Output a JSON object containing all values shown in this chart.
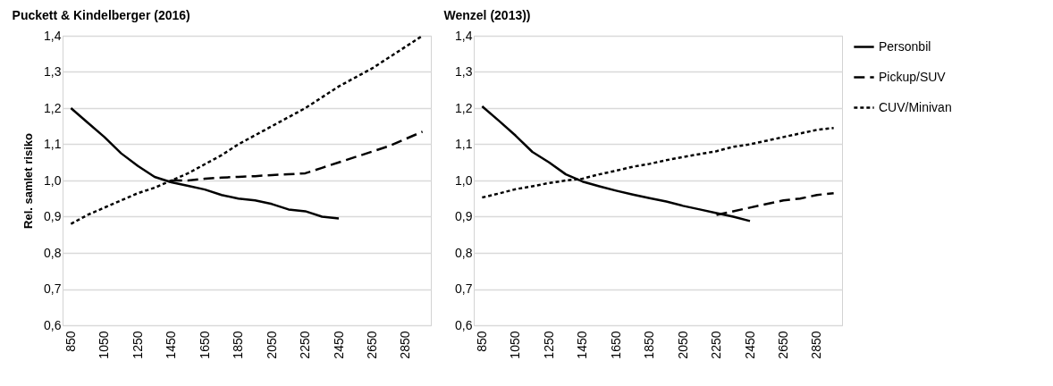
{
  "chart_data": [
    {
      "type": "line",
      "title": "Puckett & Kindelberger (2016)",
      "ylabel": "Rel. samlet risiko",
      "categories": [
        "850",
        null,
        "1050",
        null,
        "1250",
        null,
        "1450",
        null,
        "1650",
        null,
        "1850",
        null,
        "2050",
        null,
        "2250",
        null,
        "2450",
        null,
        "2650",
        null,
        "2850",
        null
      ],
      "series": [
        {
          "color": "#000000",
          "line_style": "solid",
          "values": [
            1.2,
            1.16,
            1.12,
            1.075,
            1.04,
            1.01,
            0.995,
            0.985,
            0.975,
            0.96,
            0.95,
            0.945,
            0.935,
            0.92,
            0.915,
            0.9,
            0.895,
            null,
            null,
            null,
            null,
            null
          ]
        },
        {
          "color": "#000000",
          "line_style": "dashed",
          "values": [
            null,
            null,
            null,
            null,
            null,
            null,
            1.0,
            1.0,
            1.005,
            1.008,
            1.01,
            1.012,
            1.015,
            1.017,
            1.02,
            1.035,
            1.05,
            1.065,
            1.08,
            1.095,
            1.115,
            1.135
          ]
        },
        {
          "color": "#000000",
          "line_style": "dotted",
          "values": [
            0.88,
            0.905,
            0.925,
            0.945,
            0.965,
            0.98,
            1.0,
            1.02,
            1.045,
            1.07,
            1.1,
            1.125,
            1.15,
            1.175,
            1.2,
            1.23,
            1.26,
            1.285,
            1.31,
            1.34,
            1.37,
            1.4
          ]
        }
      ],
      "ylim": [
        0.6,
        1.4
      ],
      "yticks": [
        {
          "value": 0.6,
          "label": "0,6"
        },
        {
          "value": 0.7,
          "label": "0,7"
        },
        {
          "value": 0.8,
          "label": "0,8"
        },
        {
          "value": 0.9,
          "label": "0,9"
        },
        {
          "value": 1.0,
          "label": "1,0"
        },
        {
          "value": 1.1,
          "label": "1,1"
        },
        {
          "value": 1.2,
          "label": "1,2"
        },
        {
          "value": 1.3,
          "label": "1,3"
        },
        {
          "value": 1.4,
          "label": "1,4"
        }
      ],
      "grid": "y",
      "legend": false
    },
    {
      "type": "line",
      "title": "Wenzel (2013))",
      "categories": [
        "850",
        null,
        "1050",
        null,
        "1250",
        null,
        "1450",
        null,
        "1650",
        null,
        "1850",
        null,
        "2050",
        null,
        "2250",
        null,
        "2450",
        null,
        "2650",
        null,
        "2850",
        null
      ],
      "series": [
        {
          "name": "Personbil",
          "color": "#000000",
          "line_style": "solid",
          "values": [
            1.205,
            1.165,
            1.124,
            1.079,
            1.05,
            1.017,
            0.997,
            0.984,
            0.972,
            0.961,
            0.951,
            0.942,
            0.93,
            0.92,
            0.91,
            0.9,
            0.888,
            null,
            null,
            null,
            null,
            null
          ]
        },
        {
          "name": "Pickup/SUV",
          "color": "#000000",
          "line_style": "dashed",
          "values": [
            null,
            null,
            null,
            null,
            null,
            null,
            null,
            null,
            null,
            null,
            null,
            null,
            null,
            null,
            0.905,
            0.915,
            0.925,
            0.935,
            0.945,
            0.95,
            0.96,
            0.965
          ]
        },
        {
          "name": "CUV/Minivan",
          "color": "#000000",
          "line_style": "dotted",
          "values": [
            0.953,
            0.964,
            0.976,
            0.984,
            0.993,
            1.0,
            1.005,
            1.017,
            1.027,
            1.038,
            1.046,
            1.056,
            1.065,
            1.073,
            1.081,
            1.093,
            1.1,
            1.11,
            1.12,
            1.13,
            1.14,
            1.145
          ]
        }
      ],
      "ylim": [
        0.6,
        1.4
      ],
      "yticks": [
        {
          "value": 0.6,
          "label": "0,6"
        },
        {
          "value": 0.7,
          "label": "0,7"
        },
        {
          "value": 0.8,
          "label": "0,8"
        },
        {
          "value": 0.9,
          "label": "0,9"
        },
        {
          "value": 1.0,
          "label": "1,0"
        },
        {
          "value": 1.1,
          "label": "1,1"
        },
        {
          "value": 1.2,
          "label": "1,2"
        },
        {
          "value": 1.3,
          "label": "1,3"
        },
        {
          "value": 1.4,
          "label": "1,4"
        }
      ],
      "grid": "y",
      "legend": "right"
    }
  ]
}
